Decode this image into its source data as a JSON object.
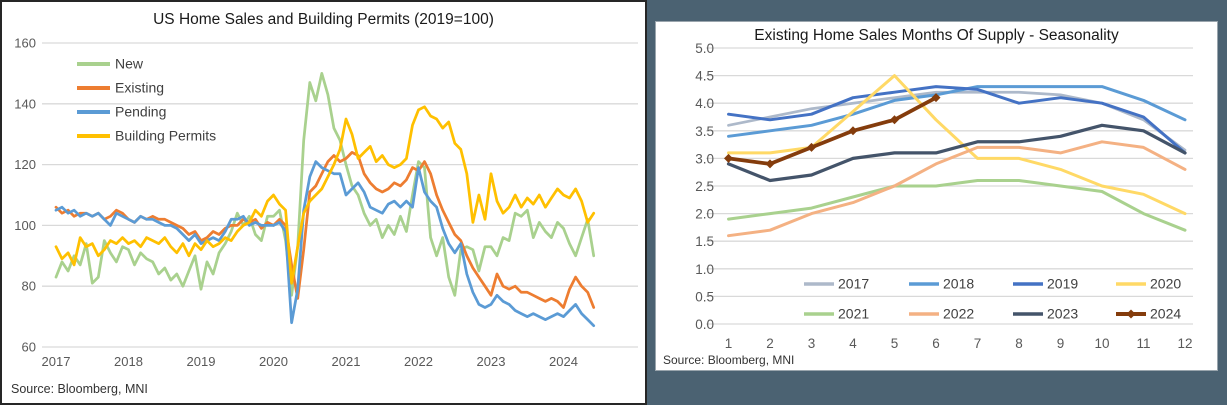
{
  "page": {
    "background_color": "#4b6272",
    "gridline_color": "#d9d9d9",
    "axis_label_color": "#595959"
  },
  "chart_data": [
    {
      "type": "line",
      "title": "US Home Sales and Building Permits (2019=100)",
      "source": "Source: Bloomberg, MNI",
      "xlabel": "",
      "ylabel": "",
      "ylim": [
        60,
        160
      ],
      "y_ticks": [
        160,
        140,
        120,
        100,
        80,
        60
      ],
      "x_ticks": [
        "2017",
        "2018",
        "2019",
        "2020",
        "2021",
        "2022",
        "2023",
        "2024"
      ],
      "x_start": "2017-01",
      "x_frequency": "monthly",
      "grid": true,
      "legend_position": "top-left",
      "series": [
        {
          "name": "New",
          "color": "#A9D18E",
          "stroke_width": 2.75,
          "values": [
            83,
            88,
            85,
            90,
            87,
            94,
            81,
            83,
            95,
            91,
            88,
            93,
            92,
            87,
            91,
            89,
            88,
            84,
            86,
            82,
            84,
            80,
            85,
            90,
            79,
            88,
            84,
            91,
            94,
            98,
            104,
            100,
            103,
            97,
            95,
            103,
            103,
            105,
            95,
            77,
            93,
            128,
            147,
            141,
            150,
            143,
            132,
            128,
            120,
            113,
            110,
            104,
            100,
            102,
            96,
            100,
            97,
            103,
            98,
            110,
            121,
            119,
            96,
            90,
            96,
            83,
            77,
            92,
            93,
            92,
            85,
            93,
            93,
            90,
            96,
            95,
            104,
            103,
            105,
            96,
            101,
            98,
            96,
            101,
            99,
            94,
            90,
            96,
            102,
            90
          ]
        },
        {
          "name": "Existing",
          "color": "#ED7D31",
          "stroke_width": 2.75,
          "values": [
            106,
            104,
            105,
            103,
            104,
            104,
            103,
            104,
            102,
            103,
            105,
            104,
            102,
            101,
            103,
            102,
            103,
            102,
            102,
            101,
            100,
            99,
            97,
            98,
            95,
            96,
            98,
            97,
            99,
            100,
            100,
            102,
            101,
            102,
            99,
            101,
            100,
            102,
            100,
            87,
            76,
            92,
            111,
            113,
            117,
            121,
            123,
            121,
            122,
            124,
            123,
            117,
            114,
            112,
            111,
            112,
            114,
            113,
            115,
            119,
            118,
            121,
            117,
            110,
            105,
            101,
            97,
            95,
            90,
            86,
            83,
            80,
            77,
            84,
            80,
            79,
            80,
            78,
            78,
            77,
            76,
            75,
            76,
            75,
            73,
            79,
            83,
            80,
            78,
            73
          ]
        },
        {
          "name": "Pending",
          "color": "#5B9BD5",
          "stroke_width": 2.75,
          "values": [
            105,
            106,
            104,
            105,
            103,
            104,
            103,
            104,
            102,
            100,
            104,
            103,
            102,
            101,
            103,
            102,
            102,
            101,
            100,
            100,
            99,
            97,
            95,
            97,
            94,
            95,
            96,
            95,
            98,
            102,
            102,
            103,
            100,
            101,
            100,
            100,
            100,
            101,
            98,
            68,
            79,
            105,
            116,
            121,
            119,
            118,
            117,
            117,
            110,
            112,
            114,
            111,
            106,
            105,
            104,
            107,
            108,
            106,
            108,
            106,
            119,
            111,
            108,
            106,
            99,
            94,
            91,
            94,
            84,
            78,
            74,
            73,
            74,
            77,
            75,
            74,
            72,
            71,
            70,
            71,
            70,
            69,
            70,
            71,
            70,
            72,
            74,
            71,
            69,
            67
          ]
        },
        {
          "name": "Building Permits",
          "color": "#FFC000",
          "stroke_width": 2.75,
          "values": [
            93,
            89,
            91,
            87,
            96,
            93,
            94,
            90,
            92,
            95,
            94,
            96,
            94,
            95,
            93,
            96,
            95,
            94,
            96,
            93,
            91,
            94,
            90,
            94,
            92,
            95,
            93,
            94,
            96,
            95,
            98,
            100,
            101,
            105,
            103,
            108,
            110,
            107,
            105,
            81,
            93,
            104,
            108,
            110,
            112,
            116,
            120,
            125,
            135,
            130,
            122,
            124,
            126,
            121,
            123,
            120,
            119,
            120,
            122,
            133,
            138,
            139,
            136,
            135,
            132,
            134,
            127,
            125,
            117,
            101,
            110,
            102,
            117,
            108,
            104,
            106,
            110,
            106,
            109,
            107,
            110,
            106,
            109,
            112,
            110,
            109,
            112,
            108,
            101,
            104
          ]
        }
      ]
    },
    {
      "type": "line",
      "title": "Existing Home Sales Months Of Supply - Seasonality",
      "source": "Source: Bloomberg, MNI",
      "xlabel": "",
      "ylabel": "",
      "ylim": [
        0.0,
        5.0
      ],
      "y_ticks": [
        "5.0",
        "4.5",
        "4.0",
        "3.5",
        "3.0",
        "2.5",
        "2.0",
        "1.5",
        "1.0",
        "0.5",
        "0.0"
      ],
      "x": [
        1,
        2,
        3,
        4,
        5,
        6,
        7,
        8,
        9,
        10,
        11,
        12
      ],
      "grid": true,
      "legend_position": "bottom",
      "series": [
        {
          "name": "2017",
          "color": "#ADB9CA",
          "stroke_width": 2.75,
          "values": [
            3.6,
            3.75,
            3.9,
            4.0,
            4.1,
            4.2,
            4.2,
            4.2,
            4.15,
            4.0,
            3.7,
            3.15
          ]
        },
        {
          "name": "2018",
          "color": "#5B9BD5",
          "stroke_width": 3,
          "values": [
            3.4,
            3.5,
            3.6,
            3.8,
            4.05,
            4.15,
            4.3,
            4.3,
            4.3,
            4.3,
            4.05,
            3.7
          ]
        },
        {
          "name": "2019",
          "color": "#4472C4",
          "stroke_width": 3,
          "values": [
            3.8,
            3.7,
            3.8,
            4.1,
            4.2,
            4.3,
            4.25,
            4.0,
            4.1,
            4.0,
            3.75,
            3.1
          ]
        },
        {
          "name": "2020",
          "color": "#FFD966",
          "stroke_width": 3,
          "values": [
            3.1,
            3.1,
            3.2,
            3.85,
            4.5,
            3.7,
            3.0,
            3.0,
            2.8,
            2.5,
            2.35,
            2.0
          ]
        },
        {
          "name": "2021",
          "color": "#A9D18E",
          "stroke_width": 3,
          "values": [
            1.9,
            2.0,
            2.1,
            2.3,
            2.5,
            2.5,
            2.6,
            2.6,
            2.5,
            2.4,
            2.0,
            1.7
          ]
        },
        {
          "name": "2022",
          "color": "#F4B183",
          "stroke_width": 3,
          "values": [
            1.6,
            1.7,
            2.0,
            2.2,
            2.5,
            2.9,
            3.2,
            3.2,
            3.1,
            3.3,
            3.2,
            2.8
          ]
        },
        {
          "name": "2023",
          "color": "#44546A",
          "stroke_width": 3.25,
          "values": [
            2.9,
            2.6,
            2.7,
            3.0,
            3.1,
            3.1,
            3.3,
            3.3,
            3.4,
            3.6,
            3.5,
            3.1
          ]
        },
        {
          "name": "2024",
          "color": "#843C0C",
          "stroke_width": 3.75,
          "marker": "diamond",
          "values": [
            3.0,
            2.9,
            3.2,
            3.5,
            3.7,
            4.1
          ]
        }
      ]
    }
  ]
}
